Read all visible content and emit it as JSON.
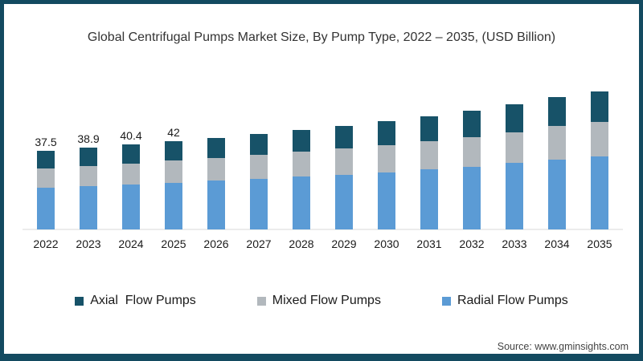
{
  "page": {
    "title": "Global Centrifugal Pumps Market Size, By Pump Type, 2022 – 2035, (USD Billion)",
    "source_text": "Source: www.gminsights.com"
  },
  "colors": {
    "radial": "#5B9BD5",
    "mixed": "#B2B8BD",
    "axial": "#175268",
    "frame_border": "#134A60",
    "axis_line": "#ECECEC",
    "title_text": "#333333",
    "label_text": "#1A1A1A"
  },
  "legend": {
    "items": [
      {
        "label": "Axial  Flow Pumps",
        "series": "axial"
      },
      {
        "label": "Mixed Flow Pumps",
        "series": "mixed"
      },
      {
        "label": "Radial Flow Pumps",
        "series": "radial"
      }
    ]
  },
  "chart_data": {
    "type": "bar",
    "stacked": true,
    "title": "Global Centrifugal Pumps Market Size, By Pump Type, 2022 – 2035, (USD Billion)",
    "unit": "USD Billion",
    "categories": [
      "2022",
      "2023",
      "2024",
      "2025",
      "2026",
      "2027",
      "2028",
      "2029",
      "2030",
      "2031",
      "2032",
      "2033",
      "2034",
      "2035"
    ],
    "series": [
      {
        "name": "Radial Flow Pumps",
        "color_key": "radial",
        "values": [
          19.9,
          20.6,
          21.4,
          22.3,
          23.2,
          24.1,
          25.1,
          26.2,
          27.3,
          28.6,
          30.0,
          31.6,
          33.4,
          34.9
        ]
      },
      {
        "name": "Mixed Flow Pumps",
        "color_key": "mixed",
        "values": [
          9.2,
          9.7,
          10.1,
          10.5,
          10.9,
          11.4,
          11.9,
          12.4,
          12.9,
          13.5,
          14.2,
          14.9,
          15.8,
          16.5
        ]
      },
      {
        "name": "Axial Flow Pumps",
        "color_key": "axial",
        "values": [
          8.4,
          8.6,
          8.9,
          9.2,
          9.6,
          10.0,
          10.4,
          10.8,
          11.4,
          11.9,
          12.4,
          13.1,
          13.8,
          14.4
        ]
      }
    ],
    "totals": [
      37.5,
      38.9,
      40.4,
      42,
      43.7,
      45.5,
      47.4,
      49.4,
      51.6,
      54.0,
      56.6,
      59.6,
      63.0,
      65.8
    ],
    "total_labels_shown": [
      "37.5",
      "38.9",
      "40.4",
      "42"
    ],
    "ylim": [
      0,
      70
    ],
    "grid": false,
    "legend_position": "bottom"
  }
}
